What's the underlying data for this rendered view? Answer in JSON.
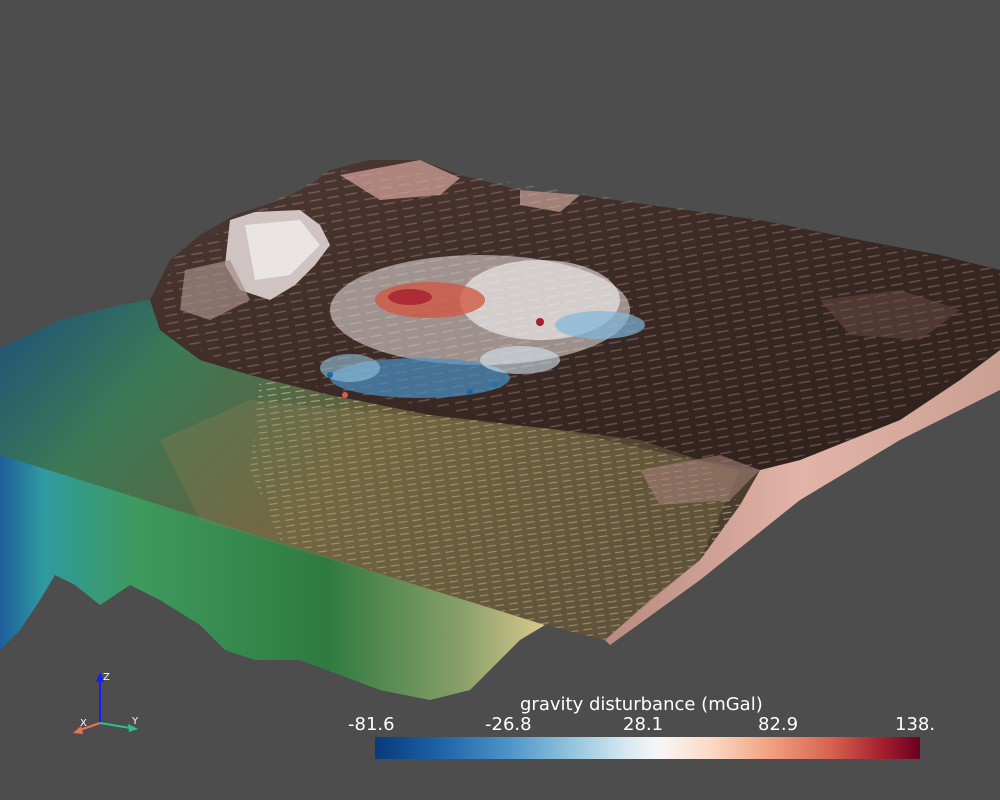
{
  "colorbar": {
    "title": "gravity disturbance (mGal)",
    "ticks": [
      "-81.6",
      "-26.8",
      "28.1",
      "82.9",
      "138."
    ],
    "colormap": [
      "#083a7a",
      "#4a92c6",
      "#f7f7f7",
      "#f2a482",
      "#6a0020"
    ]
  },
  "axes": {
    "x_label": "X",
    "y_label": "Y",
    "z_label": "Z"
  },
  "colors": {
    "background": "#4d4d4d",
    "terrain_brown": "#3a2a26",
    "terrain_pink": "#d9a99f",
    "ocean_green": "#3f8a5a",
    "ocean_blue": "#1d5e93"
  }
}
